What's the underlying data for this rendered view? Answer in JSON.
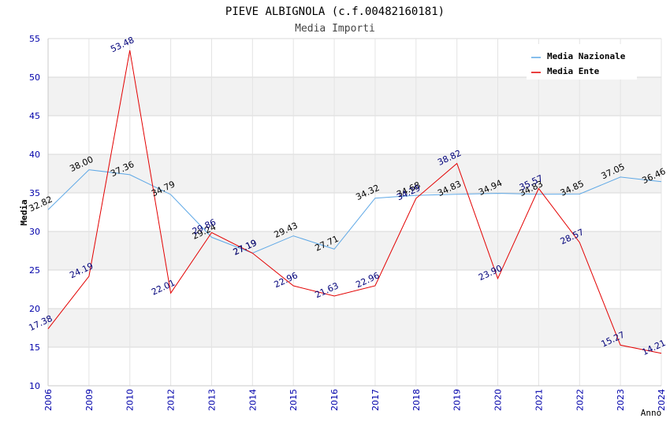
{
  "title": "PIEVE ALBIGNOLA (c.f.00482160181)",
  "subtitle": "Media Importi",
  "chart_data": {
    "type": "line",
    "title": "PIEVE ALBIGNOLA (c.f.00482160181)",
    "subtitle": "Media Importi",
    "xlabel": "Anno",
    "ylabel": "Media",
    "ylim": [
      10,
      55
    ],
    "yticks": [
      "10",
      "15",
      "20",
      "25",
      "30",
      "35",
      "40",
      "45",
      "50",
      "55"
    ],
    "categories": [
      "2006",
      "2009",
      "2010",
      "2012",
      "2013",
      "2014",
      "2015",
      "2016",
      "2017",
      "2018",
      "2019",
      "2020",
      "2021",
      "2022",
      "2023",
      "2024"
    ],
    "series": [
      {
        "name": "Media Nazionale",
        "color": "#5ea8e6",
        "label_color": "#000000",
        "values": [
          32.82,
          38.0,
          37.36,
          34.79,
          29.24,
          27.19,
          29.43,
          27.71,
          34.32,
          34.68,
          34.83,
          34.94,
          34.83,
          34.85,
          37.05,
          36.46
        ],
        "labels": [
          "32.82",
          "38.00",
          "37.36",
          "34.79",
          "29.24",
          "27.19",
          "29.43",
          "27.71",
          "34.32",
          "34.68",
          "34.83",
          "34.94",
          "34.83",
          "34.85",
          "37.05",
          "36.46"
        ]
      },
      {
        "name": "Media Ente",
        "color": "#e30000",
        "label_color": "#00007a",
        "values": [
          17.38,
          24.19,
          53.48,
          22.01,
          29.86,
          27.19,
          22.96,
          21.63,
          22.96,
          34.29,
          38.82,
          23.9,
          35.57,
          28.57,
          15.27,
          14.21
        ],
        "labels": [
          "17.38",
          "24.19",
          "53.48",
          "22.01",
          "29.86",
          "27.19",
          "22.96",
          "21.63",
          "22.96",
          "34.29",
          "38.82",
          "23.90",
          "35.57",
          "28.57",
          "15.27",
          "14.21"
        ]
      }
    ],
    "grid": true,
    "legend_position": "top-right"
  }
}
